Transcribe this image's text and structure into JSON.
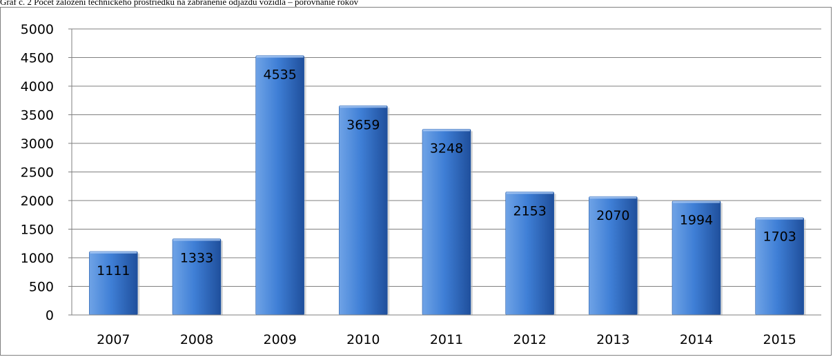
{
  "caption": "Graf č. 2 Počet založení technického prostriedku na zabránenie odjazdu vozidla – porovnanie rokov",
  "colors": {
    "bar_light": "#6fa3e6",
    "bar_mid": "#3f7fd6",
    "bar_dark": "#1f4f9c",
    "grid": "#7f7f7f",
    "axis": "#7f7f7f"
  },
  "chart_data": {
    "type": "bar",
    "title": "",
    "xlabel": "",
    "ylabel": "",
    "categories": [
      "2007",
      "2008",
      "2009",
      "2010",
      "2011",
      "2012",
      "2013",
      "2014",
      "2015"
    ],
    "values": [
      1111,
      1333,
      4535,
      3659,
      3248,
      2153,
      2070,
      1994,
      1703
    ],
    "ylim": [
      0,
      5000
    ],
    "yticks": [
      0,
      500,
      1000,
      1500,
      2000,
      2500,
      3000,
      3500,
      4000,
      4500,
      5000
    ],
    "grid": true,
    "legend": "none",
    "data_labels": true
  }
}
